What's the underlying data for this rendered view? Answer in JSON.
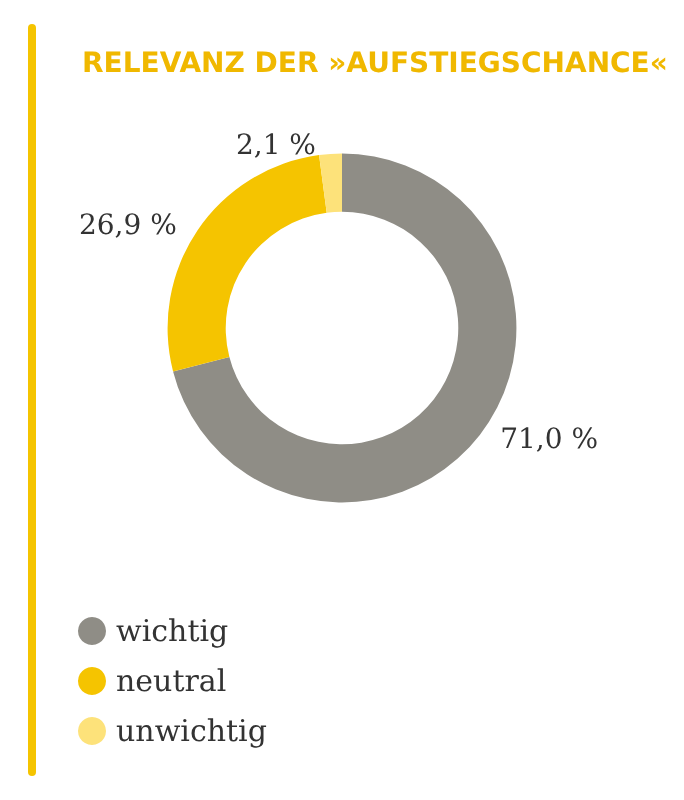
{
  "chart_data": {
    "type": "donut",
    "title": "RELEVANZ DER »AUFSTIEGSCHANCE«",
    "categories": [
      "wichtig",
      "neutral",
      "unwichtig"
    ],
    "values": [
      71.0,
      26.9,
      2.1
    ],
    "value_labels": [
      "71,0 %",
      "26,9 %",
      "2,1 %"
    ],
    "colors": [
      "#8f8d86",
      "#f5c400",
      "#fde27a"
    ],
    "legend": "bottom left"
  }
}
